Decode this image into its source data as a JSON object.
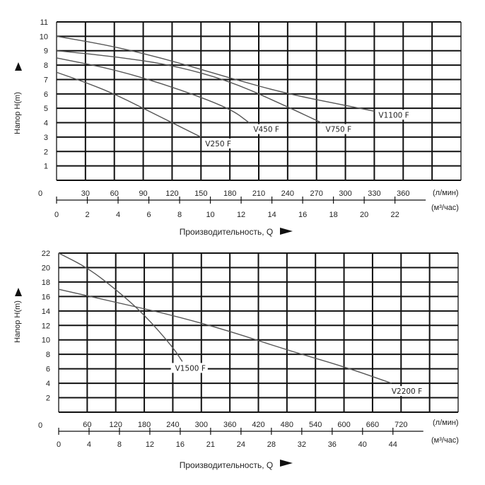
{
  "chart_data": [
    {
      "type": "line",
      "ylabel": "Напор Н(m)",
      "xlabel": "Производительность, Q",
      "unit_flow_lmin": "(л/мин)",
      "unit_flow_m3h": "(м³/час)",
      "origin_label": "0",
      "ylim": [
        0,
        11
      ],
      "y_ticks": [
        "1",
        "2",
        "3",
        "4",
        "5",
        "6",
        "7",
        "8",
        "9",
        "10",
        "11"
      ],
      "x_lmin_ticks": [
        "30",
        "60",
        "90",
        "120",
        "150",
        "180",
        "210",
        "240",
        "270",
        "300",
        "330",
        "360"
      ],
      "x_m3h_ticks": [
        "0",
        "2",
        "4",
        "6",
        "8",
        "10",
        "12",
        "14",
        "16",
        "18",
        "20",
        "22"
      ],
      "grid": true,
      "series": [
        {
          "name": "V250 F",
          "x_lmin": [
            0,
            30,
            60,
            90,
            120,
            150
          ],
          "y": [
            7.5,
            6.8,
            6.0,
            5.0,
            4.0,
            3.0
          ]
        },
        {
          "name": "V450 F",
          "x_lmin": [
            0,
            60,
            120,
            180,
            200
          ],
          "y": [
            8.5,
            7.7,
            6.5,
            5.0,
            4.0
          ]
        },
        {
          "name": "V750 F",
          "x_lmin": [
            0,
            60,
            120,
            180,
            240,
            275
          ],
          "y": [
            9.0,
            8.6,
            8.0,
            6.9,
            5.1,
            4.0
          ]
        },
        {
          "name": "V1100 F",
          "x_lmin": [
            0,
            60,
            120,
            180,
            240,
            300,
            330
          ],
          "y": [
            10.0,
            9.3,
            8.3,
            7.1,
            6.0,
            5.2,
            4.8
          ]
        }
      ]
    },
    {
      "type": "line",
      "ylabel": "Напор Н(m)",
      "xlabel": "Производительность, Q",
      "unit_flow_lmin": "(л/мин)",
      "unit_flow_m3h": "(м³/час)",
      "origin_label": "0",
      "ylim": [
        0,
        22
      ],
      "y_ticks": [
        "2",
        "4",
        "6",
        "8",
        "10",
        "12",
        "14",
        "16",
        "18",
        "20",
        "22"
      ],
      "x_lmin_ticks": [
        "60",
        "120",
        "180",
        "240",
        "300",
        "360",
        "420",
        "480",
        "540",
        "600",
        "660",
        "720"
      ],
      "x_m3h_ticks": [
        "0",
        "4",
        "8",
        "12",
        "16",
        "21",
        "24",
        "28",
        "32",
        "36",
        "40",
        "44"
      ],
      "grid": true,
      "series": [
        {
          "name": "V1500 F",
          "x_lmin": [
            0,
            60,
            120,
            180,
            240,
            260
          ],
          "y": [
            22.0,
            20.0,
            17.0,
            13.5,
            9.0,
            7.0
          ]
        },
        {
          "name": "V2200 F",
          "x_lmin": [
            0,
            120,
            240,
            360,
            480,
            600,
            700
          ],
          "y": [
            17.0,
            15.2,
            13.4,
            11.2,
            8.6,
            6.3,
            4.0
          ]
        }
      ]
    }
  ]
}
